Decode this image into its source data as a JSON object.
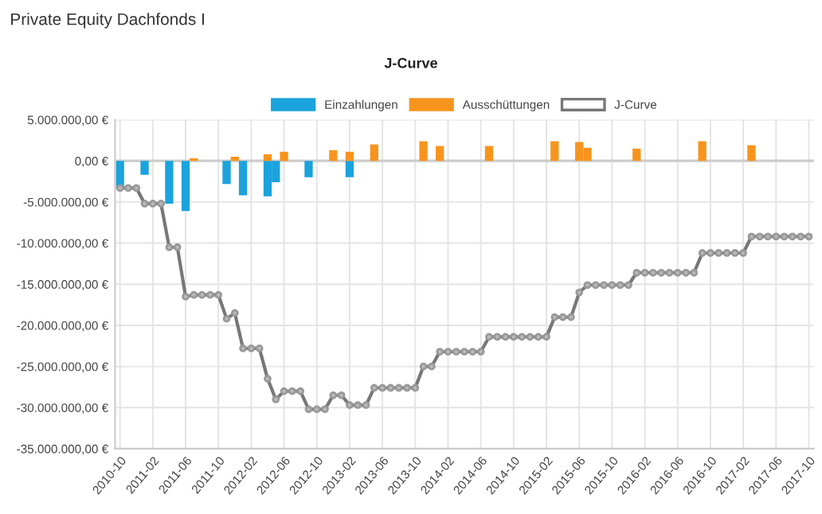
{
  "chart_data": {
    "type": "bar",
    "title": "Private Equity Dachfonds I",
    "subtitle": "J-Curve",
    "categories": [
      "2010-10",
      null,
      null,
      null,
      "2011-02",
      null,
      null,
      null,
      "2011-06",
      null,
      null,
      null,
      "2011-10",
      null,
      null,
      null,
      "2012-02",
      null,
      null,
      null,
      "2012-06",
      null,
      null,
      null,
      "2012-10",
      null,
      null,
      null,
      "2013-02",
      null,
      null,
      null,
      "2013-06",
      null,
      null,
      null,
      "2013-10",
      null,
      null,
      null,
      "2014-02",
      null,
      null,
      null,
      "2014-06",
      null,
      null,
      null,
      "2014-10",
      null,
      null,
      null,
      "2015-02",
      null,
      null,
      null,
      "2015-06",
      null,
      null,
      null,
      "2015-10",
      null,
      null,
      null,
      "2016-02",
      null,
      null,
      null,
      "2016-06",
      null,
      null,
      null,
      "2016-10",
      null,
      null,
      null,
      "2017-02",
      null,
      null,
      null,
      "2017-06",
      null,
      null,
      null,
      "2017-10"
    ],
    "series": [
      {
        "name": "Einzahlungen",
        "color": "#1aa3dd",
        "values": [
          -3400000,
          null,
          null,
          -1700000,
          null,
          null,
          -5200000,
          null,
          -6100000,
          null,
          null,
          null,
          null,
          -2800000,
          null,
          -4200000,
          null,
          null,
          -4300000,
          -2600000,
          null,
          null,
          null,
          -2000000,
          null,
          null,
          null,
          null,
          -2000000,
          null,
          null,
          null,
          null,
          null,
          null,
          null,
          null,
          null,
          null,
          null,
          null,
          null,
          null,
          null,
          null,
          null,
          null,
          null,
          null,
          null,
          null,
          null,
          null,
          null,
          null,
          null,
          null,
          null,
          null,
          null,
          null,
          null,
          null,
          null,
          null,
          null,
          null,
          null,
          null,
          null,
          null,
          null,
          null,
          null,
          null,
          null,
          null,
          null,
          null,
          null,
          null,
          null,
          null,
          null,
          null
        ]
      },
      {
        "name": "Ausschüttungen",
        "color": "#f7941d",
        "values": [
          null,
          null,
          null,
          null,
          null,
          null,
          null,
          null,
          null,
          300000,
          null,
          null,
          null,
          null,
          500000,
          null,
          null,
          null,
          800000,
          null,
          1100000,
          null,
          null,
          null,
          null,
          null,
          1300000,
          null,
          1100000,
          null,
          null,
          2000000,
          null,
          null,
          null,
          null,
          null,
          2400000,
          null,
          1800000,
          null,
          null,
          null,
          null,
          null,
          1800000,
          null,
          null,
          null,
          null,
          null,
          null,
          null,
          2400000,
          null,
          null,
          2300000,
          1600000,
          null,
          null,
          null,
          null,
          null,
          1500000,
          null,
          null,
          null,
          null,
          null,
          null,
          null,
          2400000,
          null,
          null,
          null,
          null,
          null,
          1900000,
          null,
          null,
          null,
          null,
          null,
          null,
          null
        ]
      },
      {
        "name": "J-Curve",
        "type": "line",
        "color": "#777777",
        "values": [
          -3300000,
          -3300000,
          -3300000,
          -5200000,
          -5200000,
          -5200000,
          -10500000,
          -10500000,
          -16500000,
          -16300000,
          -16300000,
          -16300000,
          -16300000,
          -19200000,
          -18500000,
          -22800000,
          -22800000,
          -22800000,
          -26500000,
          -29000000,
          -28000000,
          -28000000,
          -28000000,
          -30200000,
          -30200000,
          -30200000,
          -28500000,
          -28500000,
          -29700000,
          -29700000,
          -29700000,
          -27600000,
          -27600000,
          -27600000,
          -27600000,
          -27600000,
          -27600000,
          -25000000,
          -25000000,
          -23200000,
          -23200000,
          -23200000,
          -23200000,
          -23200000,
          -23200000,
          -21400000,
          -21400000,
          -21400000,
          -21400000,
          -21400000,
          -21400000,
          -21400000,
          -21400000,
          -19000000,
          -19000000,
          -19000000,
          -16000000,
          -15100000,
          -15100000,
          -15100000,
          -15100000,
          -15100000,
          -15100000,
          -13600000,
          -13600000,
          -13600000,
          -13600000,
          -13600000,
          -13600000,
          -13600000,
          -13600000,
          -11200000,
          -11200000,
          -11200000,
          -11200000,
          -11200000,
          -11200000,
          -9200000,
          -9200000,
          -9200000,
          -9200000,
          -9200000,
          -9200000,
          -9200000,
          -9200000
        ]
      }
    ],
    "ylim": [
      -35000000,
      5000000
    ],
    "yticks": [
      {
        "value": -35000000,
        "label": "-35.000.000,00 €"
      },
      {
        "value": -30000000,
        "label": "-30.000.000,00 €"
      },
      {
        "value": -25000000,
        "label": "-25.000.000,00 €"
      },
      {
        "value": -20000000,
        "label": "-20.000.000,00 €"
      },
      {
        "value": -15000000,
        "label": "-15.000.000,00 €"
      },
      {
        "value": -10000000,
        "label": "-10.000.000,00 €"
      },
      {
        "value": -5000000,
        "label": "-5.000.000,00 €"
      },
      {
        "value": 0,
        "label": "0,00 €"
      },
      {
        "value": 5000000,
        "label": "5.000.000,00 €"
      }
    ],
    "grid": true,
    "legend": "top",
    "marker": "circle",
    "line_style": "solid"
  }
}
